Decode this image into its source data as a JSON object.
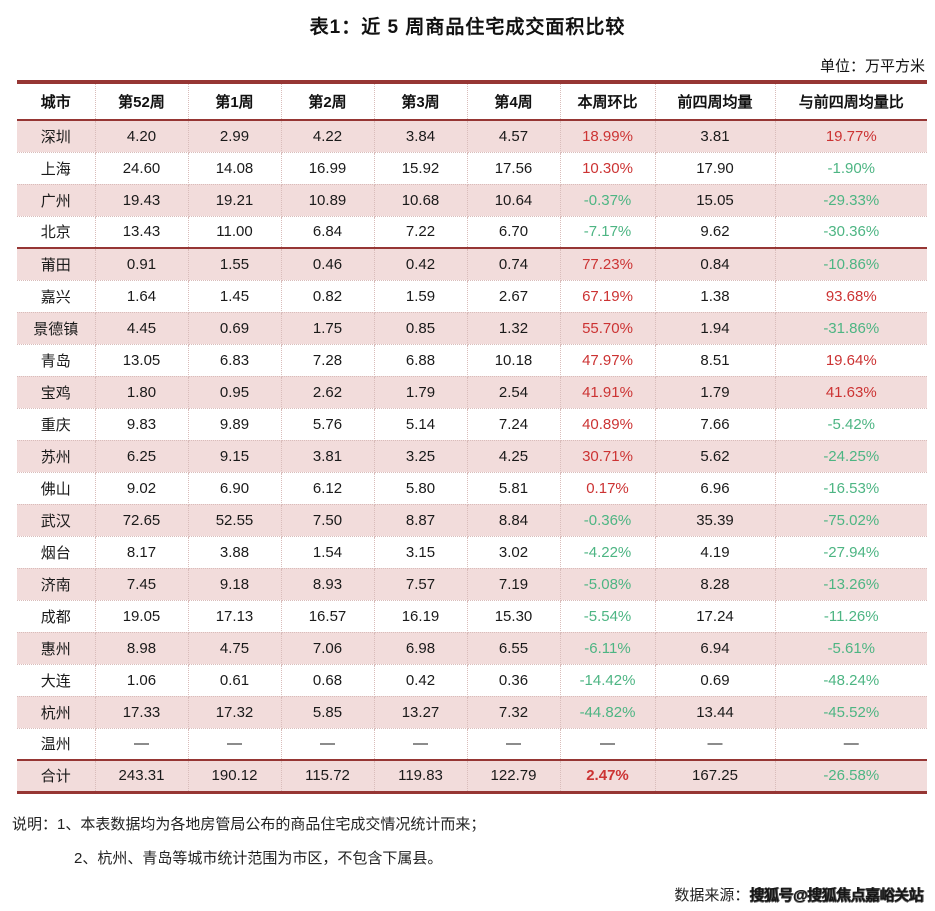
{
  "title": "表1：近 5 周商品住宅成交面积比较",
  "unit_label": "单位：万平方米",
  "colors": {
    "accent_border": "#963634",
    "row_pink": "#f2dcdb",
    "positive_pct": "#cc3333",
    "negative_pct": "#4db583"
  },
  "table": {
    "columns": [
      "城市",
      "第52周",
      "第1周",
      "第2周",
      "第3周",
      "第4周",
      "本周环比",
      "前四周均量",
      "与前四周均量比"
    ],
    "rows": [
      {
        "cells": [
          "深圳",
          "4.20",
          "2.99",
          "4.22",
          "3.84",
          "4.57",
          "18.99%",
          "3.81",
          "19.77%"
        ]
      },
      {
        "cells": [
          "上海",
          "24.60",
          "14.08",
          "16.99",
          "15.92",
          "17.56",
          "10.30%",
          "17.90",
          "-1.90%"
        ]
      },
      {
        "cells": [
          "广州",
          "19.43",
          "19.21",
          "10.89",
          "10.68",
          "10.64",
          "-0.37%",
          "15.05",
          "-29.33%"
        ]
      },
      {
        "cells": [
          "北京",
          "13.43",
          "11.00",
          "6.84",
          "7.22",
          "6.70",
          "-7.17%",
          "9.62",
          "-30.36%"
        ],
        "sep": true
      },
      {
        "cells": [
          "莆田",
          "0.91",
          "1.55",
          "0.46",
          "0.42",
          "0.74",
          "77.23%",
          "0.84",
          "-10.86%"
        ]
      },
      {
        "cells": [
          "嘉兴",
          "1.64",
          "1.45",
          "0.82",
          "1.59",
          "2.67",
          "67.19%",
          "1.38",
          "93.68%"
        ]
      },
      {
        "cells": [
          "景德镇",
          "4.45",
          "0.69",
          "1.75",
          "0.85",
          "1.32",
          "55.70%",
          "1.94",
          "-31.86%"
        ]
      },
      {
        "cells": [
          "青岛",
          "13.05",
          "6.83",
          "7.28",
          "6.88",
          "10.18",
          "47.97%",
          "8.51",
          "19.64%"
        ]
      },
      {
        "cells": [
          "宝鸡",
          "1.80",
          "0.95",
          "2.62",
          "1.79",
          "2.54",
          "41.91%",
          "1.79",
          "41.63%"
        ]
      },
      {
        "cells": [
          "重庆",
          "9.83",
          "9.89",
          "5.76",
          "5.14",
          "7.24",
          "40.89%",
          "7.66",
          "-5.42%"
        ]
      },
      {
        "cells": [
          "苏州",
          "6.25",
          "9.15",
          "3.81",
          "3.25",
          "4.25",
          "30.71%",
          "5.62",
          "-24.25%"
        ]
      },
      {
        "cells": [
          "佛山",
          "9.02",
          "6.90",
          "6.12",
          "5.80",
          "5.81",
          "0.17%",
          "6.96",
          "-16.53%"
        ]
      },
      {
        "cells": [
          "武汉",
          "72.65",
          "52.55",
          "7.50",
          "8.87",
          "8.84",
          "-0.36%",
          "35.39",
          "-75.02%"
        ]
      },
      {
        "cells": [
          "烟台",
          "8.17",
          "3.88",
          "1.54",
          "3.15",
          "3.02",
          "-4.22%",
          "4.19",
          "-27.94%"
        ]
      },
      {
        "cells": [
          "济南",
          "7.45",
          "9.18",
          "8.93",
          "7.57",
          "7.19",
          "-5.08%",
          "8.28",
          "-13.26%"
        ]
      },
      {
        "cells": [
          "成都",
          "19.05",
          "17.13",
          "16.57",
          "16.19",
          "15.30",
          "-5.54%",
          "17.24",
          "-11.26%"
        ]
      },
      {
        "cells": [
          "惠州",
          "8.98",
          "4.75",
          "7.06",
          "6.98",
          "6.55",
          "-6.11%",
          "6.94",
          "-5.61%"
        ]
      },
      {
        "cells": [
          "大连",
          "1.06",
          "0.61",
          "0.68",
          "0.42",
          "0.36",
          "-14.42%",
          "0.69",
          "-48.24%"
        ]
      },
      {
        "cells": [
          "杭州",
          "17.33",
          "17.32",
          "5.85",
          "13.27",
          "7.32",
          "-44.82%",
          "13.44",
          "-45.52%"
        ]
      },
      {
        "cells": [
          "温州",
          "—",
          "—",
          "—",
          "—",
          "—",
          "—",
          "—",
          "—"
        ]
      },
      {
        "cells": [
          "合计",
          "243.31",
          "190.12",
          "115.72",
          "119.83",
          "122.79",
          "2.47%",
          "167.25",
          "-26.58%"
        ],
        "total": true
      }
    ]
  },
  "notes": {
    "label": "说明：",
    "line1": "1、本表数据均为各地房管局公布的商品住宅成交情况统计而来；",
    "line2": "2、杭州、青岛等城市统计范围为市区，不包含下属县。"
  },
  "source": {
    "label": "数据来源：",
    "text": "搜狐号@搜狐焦点嘉峪关站"
  }
}
